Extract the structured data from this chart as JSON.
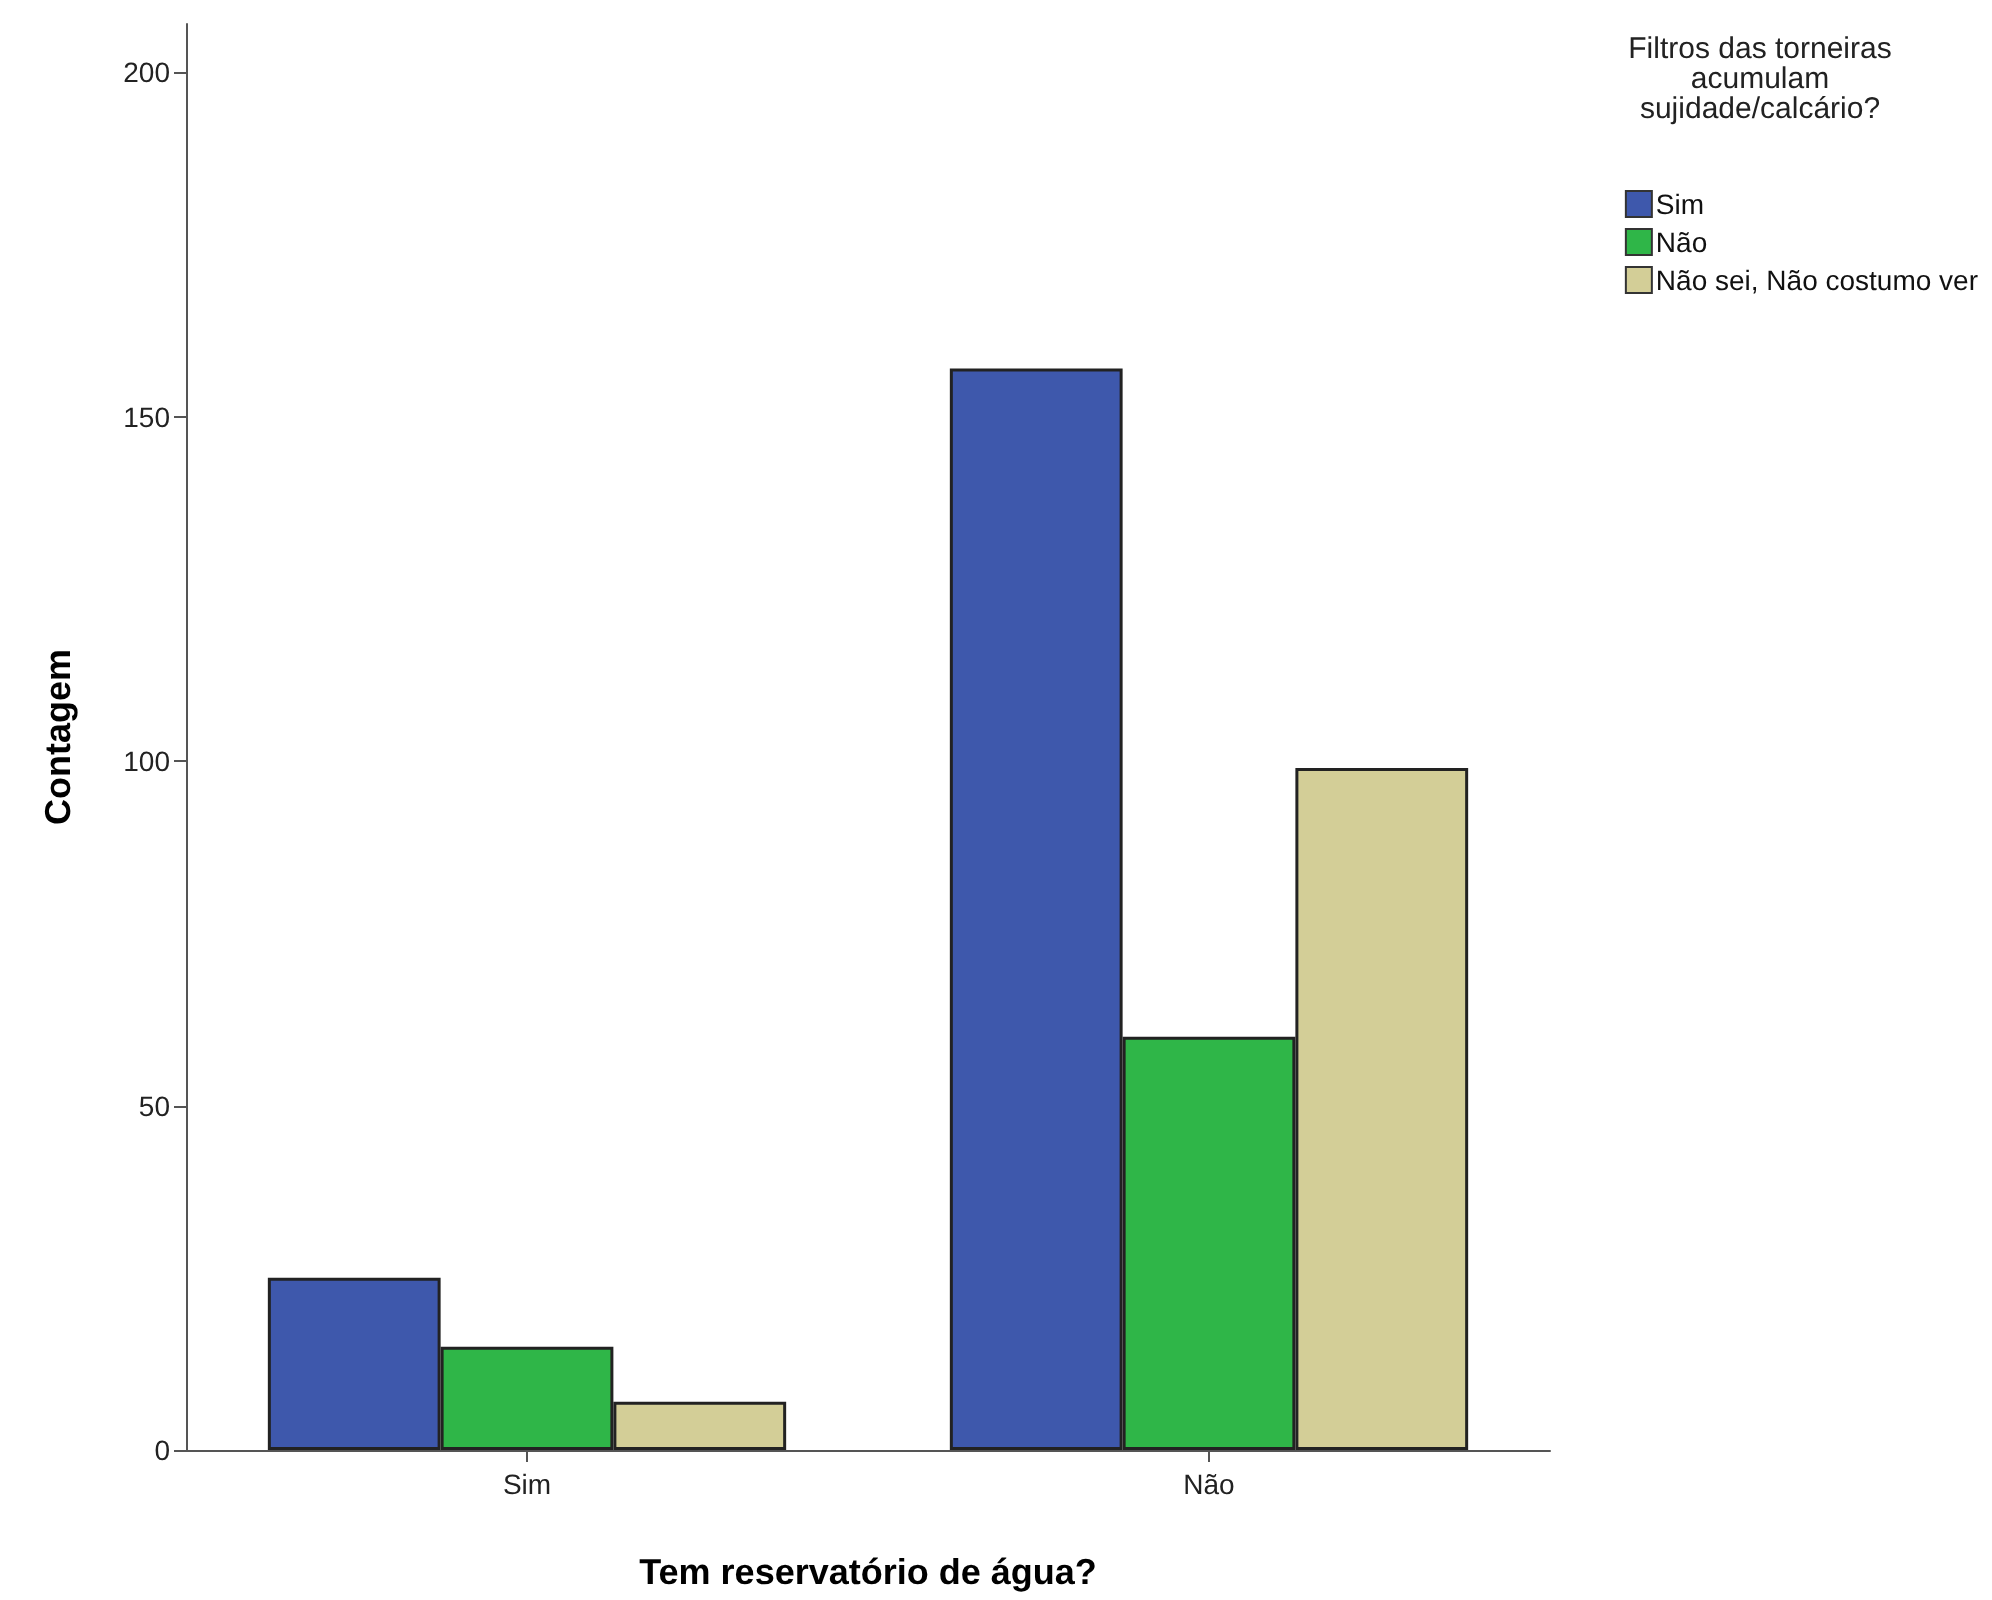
{
  "chart_data": {
    "type": "bar",
    "xlabel": "Tem reservatório de água?",
    "ylabel": "Contagem",
    "legend_title": "Filtros das torneiras\nacumulam\nsujidade/calcário?",
    "categories": [
      "Sim",
      "Não"
    ],
    "series": [
      {
        "name": "Sim",
        "color": "#3e58ac",
        "values": [
          25,
          157
        ]
      },
      {
        "name": "Não",
        "color": "#2fb648",
        "values": [
          15,
          60
        ]
      },
      {
        "name": "Não sei, Não costumo ver",
        "color": "#d3ce97",
        "values": [
          7,
          99
        ]
      }
    ],
    "ylim": [
      0,
      207
    ],
    "yticks": [
      0,
      50,
      100,
      150,
      200
    ],
    "grid": false,
    "legend": "top right"
  }
}
